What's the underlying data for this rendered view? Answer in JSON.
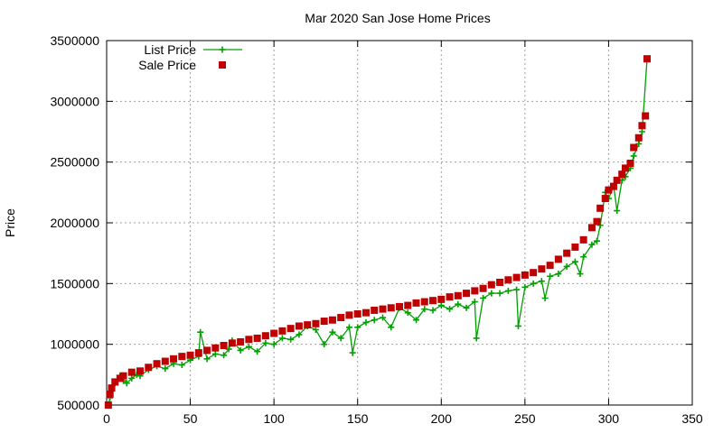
{
  "chart_data": {
    "type": "scatter",
    "title": "Mar 2020 San Jose Home Prices",
    "xlabel": "",
    "ylabel": "Price",
    "xlim": [
      0,
      350
    ],
    "ylim": [
      500000,
      3500000
    ],
    "xticks": [
      0,
      50,
      100,
      150,
      200,
      250,
      300,
      350
    ],
    "yticks": [
      500000,
      1000000,
      1500000,
      2000000,
      2500000,
      3000000,
      3500000
    ],
    "grid": true,
    "legend_position": "top-left",
    "series": [
      {
        "name": "List Price",
        "style": "linespoints",
        "marker": "plus",
        "color": "#00a000",
        "x": [
          1,
          2,
          3,
          5,
          8,
          10,
          12,
          15,
          18,
          20,
          25,
          30,
          35,
          40,
          45,
          50,
          55,
          56,
          60,
          65,
          70,
          73,
          75,
          80,
          85,
          90,
          95,
          100,
          105,
          110,
          115,
          120,
          125,
          130,
          135,
          140,
          145,
          147,
          150,
          155,
          160,
          165,
          170,
          175,
          180,
          185,
          190,
          195,
          200,
          205,
          210,
          215,
          220,
          221,
          225,
          230,
          235,
          240,
          245,
          246,
          250,
          255,
          260,
          262,
          265,
          270,
          275,
          280,
          283,
          285,
          290,
          293,
          295,
          298,
          300,
          303,
          305,
          308,
          310,
          313,
          315,
          318,
          320,
          323
        ],
        "y": [
          500000,
          560000,
          620000,
          680000,
          740000,
          700000,
          680000,
          720000,
          750000,
          740000,
          790000,
          820000,
          800000,
          840000,
          830000,
          870000,
          900000,
          1100000,
          880000,
          920000,
          910000,
          960000,
          1030000,
          950000,
          980000,
          940000,
          1010000,
          1000000,
          1050000,
          1040000,
          1080000,
          1150000,
          1120000,
          1000000,
          1100000,
          1050000,
          1140000,
          930000,
          1140000,
          1180000,
          1200000,
          1220000,
          1140000,
          1300000,
          1260000,
          1200000,
          1290000,
          1280000,
          1320000,
          1290000,
          1330000,
          1300000,
          1350000,
          1050000,
          1380000,
          1420000,
          1420000,
          1440000,
          1450000,
          1150000,
          1470000,
          1500000,
          1520000,
          1380000,
          1560000,
          1580000,
          1640000,
          1680000,
          1580000,
          1720000,
          1820000,
          1850000,
          1980000,
          2250000,
          2200000,
          2300000,
          2100000,
          2350000,
          2380000,
          2450000,
          2550000,
          2650000,
          2750000,
          3350000
        ]
      },
      {
        "name": "Sale Price",
        "style": "points",
        "marker": "square",
        "color": "#c00000",
        "x": [
          1,
          2,
          3,
          5,
          8,
          10,
          15,
          20,
          25,
          30,
          35,
          40,
          45,
          50,
          55,
          60,
          65,
          70,
          75,
          80,
          85,
          90,
          95,
          100,
          105,
          110,
          115,
          120,
          125,
          130,
          135,
          140,
          145,
          150,
          155,
          160,
          165,
          170,
          175,
          180,
          185,
          190,
          195,
          200,
          205,
          210,
          215,
          220,
          225,
          230,
          235,
          240,
          245,
          250,
          255,
          260,
          265,
          270,
          275,
          280,
          285,
          290,
          293,
          295,
          298,
          300,
          303,
          305,
          308,
          310,
          313,
          315,
          318,
          320,
          322,
          323
        ],
        "y": [
          500000,
          590000,
          640000,
          690000,
          720000,
          740000,
          770000,
          780000,
          810000,
          840000,
          860000,
          880000,
          900000,
          910000,
          930000,
          950000,
          970000,
          990000,
          1010000,
          1020000,
          1040000,
          1050000,
          1070000,
          1090000,
          1110000,
          1130000,
          1150000,
          1160000,
          1170000,
          1190000,
          1200000,
          1220000,
          1240000,
          1250000,
          1260000,
          1280000,
          1290000,
          1300000,
          1310000,
          1320000,
          1340000,
          1350000,
          1360000,
          1370000,
          1390000,
          1400000,
          1420000,
          1440000,
          1460000,
          1490000,
          1510000,
          1530000,
          1550000,
          1570000,
          1590000,
          1620000,
          1650000,
          1700000,
          1750000,
          1800000,
          1860000,
          1960000,
          2010000,
          2120000,
          2200000,
          2270000,
          2300000,
          2350000,
          2400000,
          2450000,
          2490000,
          2620000,
          2700000,
          2800000,
          2880000,
          3350000
        ]
      }
    ]
  }
}
